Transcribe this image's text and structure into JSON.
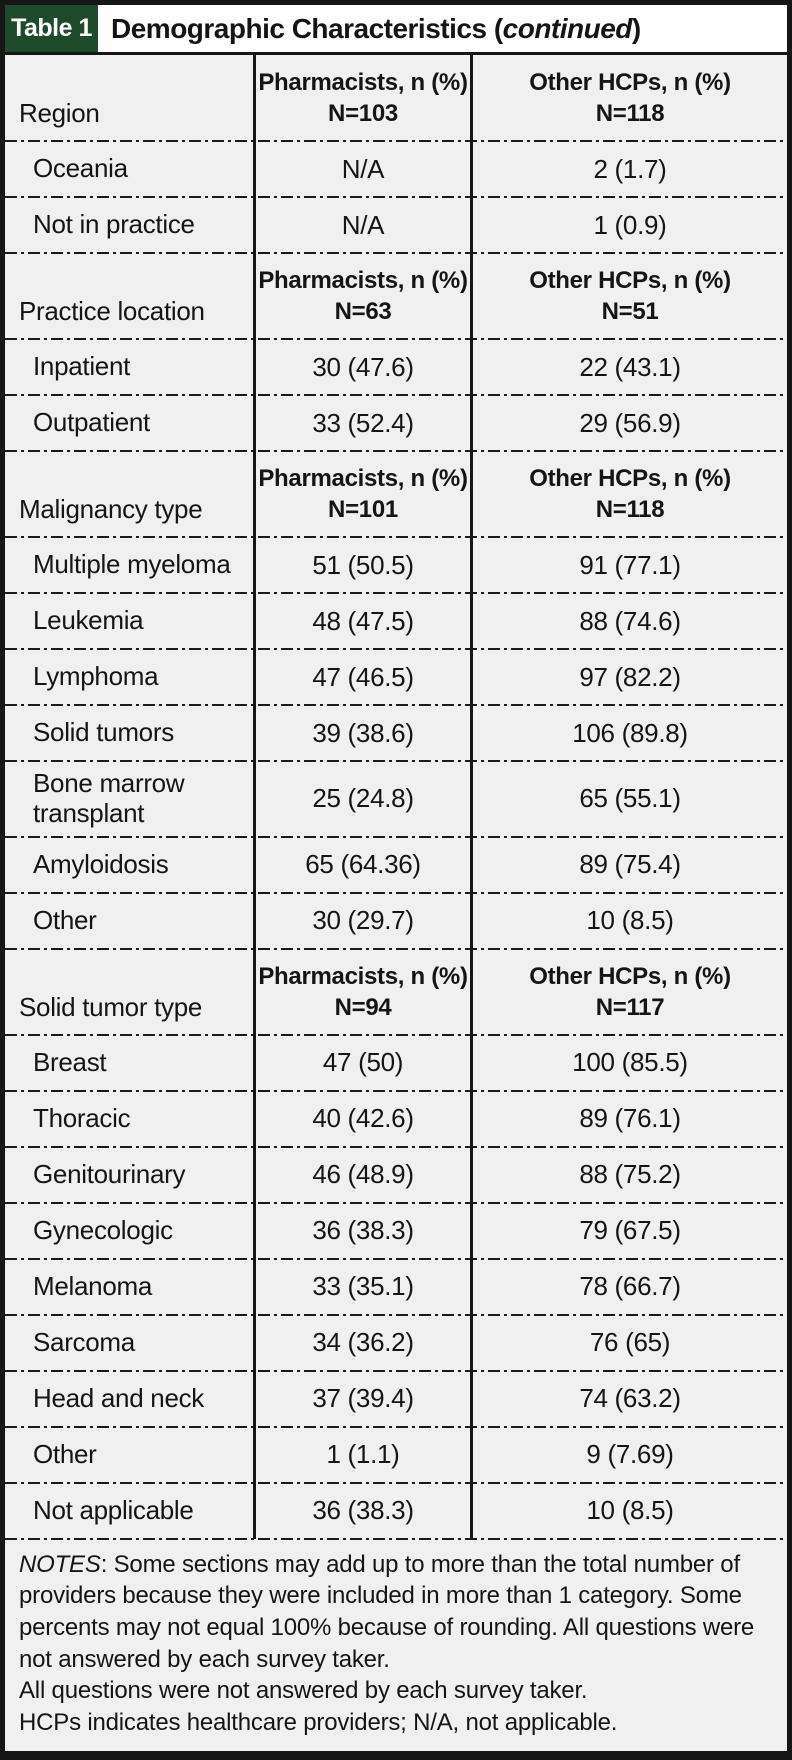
{
  "colors": {
    "tag_green": "#1c4a2a",
    "cell_background": "#f0f0f0",
    "line_black": "#161616"
  },
  "header": {
    "tag": "Table 1",
    "title": "Demographic Characteristics (",
    "continued_word": "continued",
    "close_paren": ")"
  },
  "table": {
    "sections": [
      {
        "label": "Region",
        "pharm_header": "Pharmacists, n (%)",
        "pharm_n": "N=103",
        "other_header": "Other HCPs, n (%)",
        "other_n": "N=118",
        "rows": [
          {
            "label": "Oceania",
            "pharm": "N/A",
            "other": "2 (1.7)"
          },
          {
            "label": "Not in practice",
            "pharm": "N/A",
            "other": "1 (0.9)"
          }
        ]
      },
      {
        "label": "Practice location",
        "pharm_header": "Pharmacists, n (%)",
        "pharm_n": "N=63",
        "other_header": "Other HCPs, n (%)",
        "other_n": "N=51",
        "rows": [
          {
            "label": "Inpatient",
            "pharm": "30 (47.6)",
            "other": "22 (43.1)"
          },
          {
            "label": "Outpatient",
            "pharm": "33 (52.4)",
            "other": "29 (56.9)"
          }
        ]
      },
      {
        "label": "Malignancy type",
        "pharm_header": "Pharmacists, n (%)",
        "pharm_n": "N=101",
        "other_header": "Other HCPs, n (%)",
        "other_n": "N=118",
        "rows": [
          {
            "label": "Multiple myeloma",
            "pharm": "51 (50.5)",
            "other": "91 (77.1)"
          },
          {
            "label": "Leukemia",
            "pharm": "48 (47.5)",
            "other": "88 (74.6)"
          },
          {
            "label": "Lymphoma",
            "pharm": "47 (46.5)",
            "other": "97 (82.2)"
          },
          {
            "label": "Solid tumors",
            "pharm": "39 (38.6)",
            "other": "106 (89.8)"
          },
          {
            "label": "Bone marrow transplant",
            "pharm": "25 (24.8)",
            "other": "65 (55.1)"
          },
          {
            "label": "Amyloidosis",
            "pharm": "65 (64.36)",
            "other": "89 (75.4)"
          },
          {
            "label": "Other",
            "pharm": "30 (29.7)",
            "other": "10 (8.5)"
          }
        ]
      },
      {
        "label": "Solid tumor type",
        "pharm_header": "Pharmacists, n (%)",
        "pharm_n": "N=94",
        "other_header": "Other HCPs, n (%)",
        "other_n": "N=117",
        "rows": [
          {
            "label": "Breast",
            "pharm": "47 (50)",
            "other": "100 (85.5)"
          },
          {
            "label": "Thoracic",
            "pharm": "40 (42.6)",
            "other": "89 (76.1)"
          },
          {
            "label": "Genitourinary",
            "pharm": "46 (48.9)",
            "other": "88 (75.2)"
          },
          {
            "label": "Gynecologic",
            "pharm": "36 (38.3)",
            "other": "79 (67.5)"
          },
          {
            "label": "Melanoma",
            "pharm": "33 (35.1)",
            "other": "78 (66.7)"
          },
          {
            "label": "Sarcoma",
            "pharm": "34 (36.2)",
            "other": "76 (65)"
          },
          {
            "label": "Head and neck",
            "pharm": "37 (39.4)",
            "other": "74 (63.2)"
          },
          {
            "label": "Other",
            "pharm": "1 (1.1)",
            "other": "9 (7.69)"
          },
          {
            "label": "Not applicable",
            "pharm": "36 (38.3)",
            "other": "10 (8.5)"
          }
        ]
      }
    ]
  },
  "notes": {
    "label": "NOTES",
    "para1": ": Some sections may add up to more than the total number of providers because they were included in more than 1 category. Some percents may not equal 100% because of rounding. All questions were not answered by each survey taker.",
    "line2": "All questions were not answered by each survey taker.",
    "line3": "HCPs indicates healthcare providers; N/A, not applicable."
  }
}
